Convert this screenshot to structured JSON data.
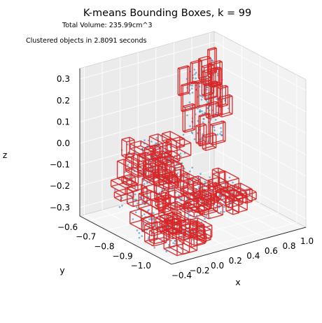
{
  "chart_data": {
    "type": "scatter",
    "title": "K-means Bounding Boxes, k = 99",
    "subtitle_lines": [
      "Total Volume: 235.99cm^3",
      "Clustered objects in 2.8091 seconds"
    ],
    "projection": "3d",
    "xlabel": "x",
    "ylabel": "y",
    "zlabel": "z",
    "xticks": [
      "−0.4",
      "−0.2",
      "0.0",
      "0.2",
      "0.4",
      "0.6",
      "0.8",
      "1.0"
    ],
    "yticks": [
      "−0.6",
      "−0.7",
      "−0.8",
      "−0.9",
      "−1.0"
    ],
    "zticks": [
      "0.3",
      "0.2",
      "0.1",
      "0.0",
      "−0.1",
      "−0.2",
      "−0.3"
    ],
    "xlim": [
      -0.45,
      1.05
    ],
    "ylim": [
      -1.05,
      -0.55
    ],
    "zlim": [
      -0.34,
      0.35
    ],
    "grid": true,
    "point_color": "#1f77b4",
    "box_color": "#d62728",
    "box_count": 99,
    "point_clusters": [
      {
        "x": [
          0.6,
          1.0
        ],
        "y": [
          -0.66,
          -0.58
        ],
        "z": [
          -0.1,
          0.25
        ]
      },
      {
        "x": [
          -0.2,
          0.55
        ],
        "y": [
          -0.8,
          -0.6
        ],
        "z": [
          -0.3,
          -0.15
        ]
      },
      {
        "x": [
          0.3,
          0.85
        ],
        "y": [
          -0.85,
          -0.7
        ],
        "z": [
          -0.32,
          -0.22
        ]
      },
      {
        "x": [
          -0.4,
          0.1
        ],
        "y": [
          -1.0,
          -0.8
        ],
        "z": [
          -0.33,
          -0.22
        ]
      },
      {
        "x": [
          0.0,
          0.45
        ],
        "y": [
          -0.7,
          -0.55
        ],
        "z": [
          -0.2,
          -0.05
        ]
      }
    ]
  }
}
